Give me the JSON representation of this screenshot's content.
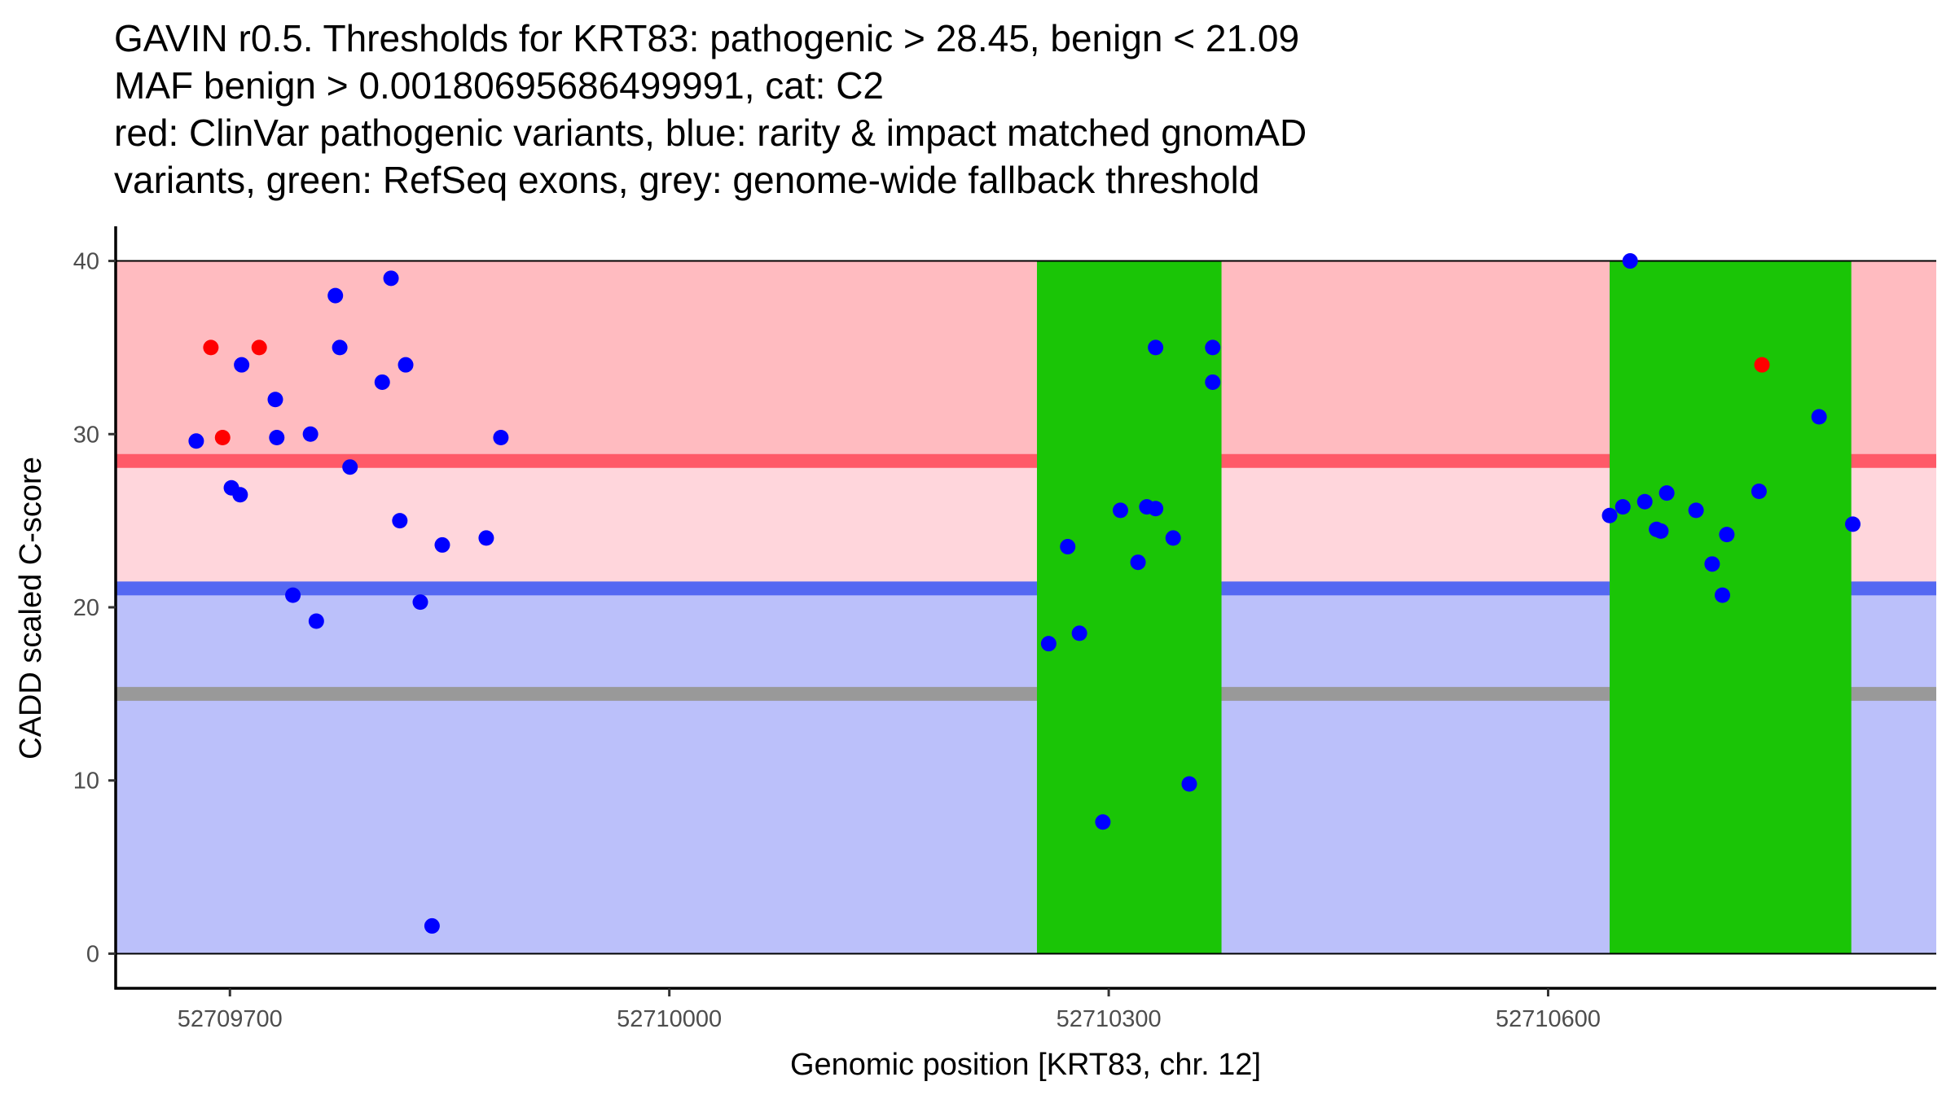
{
  "chart_data": {
    "type": "scatter",
    "title_lines": [
      "GAVIN r0.5. Thresholds for KRT83: pathogenic > 28.45, benign < 21.09",
      "MAF benign > 0.00180695686499991, cat: C2",
      "red: ClinVar pathogenic variants, blue: rarity & impact matched gnomAD",
      "variants, green: RefSeq exons, grey: genome-wide fallback threshold"
    ],
    "xlabel": "Genomic position [KRT83, chr. 12]",
    "ylabel": "CADD scaled C-score",
    "xlim": [
      52709622,
      52710865
    ],
    "ylim": [
      -2,
      42
    ],
    "x_ticks": [
      52709700,
      52710000,
      52710300,
      52710600
    ],
    "x_tick_labels": [
      "52709700",
      "52710000",
      "52710300",
      "52710600"
    ],
    "y_ticks": [
      0,
      10,
      20,
      30,
      40
    ],
    "y_tick_labels": [
      "0",
      "10",
      "20",
      "30",
      "40"
    ],
    "grid": false,
    "regions": {
      "pathogenic_zone": {
        "from": 28.45,
        "to": 40,
        "color": "#ffbbc0"
      },
      "uncertain_zone": {
        "from": 21.09,
        "to": 28.45,
        "color": "#ffd6dc"
      },
      "benign_zone": {
        "from": 0,
        "to": 21.09,
        "color": "#bbc0fa"
      }
    },
    "thresholds": [
      {
        "name": "pathogenic",
        "value": 28.45,
        "color": "#ff5a68"
      },
      {
        "name": "benign",
        "value": 21.09,
        "color": "#5468f2"
      },
      {
        "name": "genome-wide fallback",
        "value": 15.0,
        "color": "#999999"
      }
    ],
    "exons": [
      {
        "start": 52710251,
        "end": 52710377,
        "color": "#1ac506"
      },
      {
        "start": 52710642,
        "end": 52710807,
        "color": "#1ac506"
      }
    ],
    "series": [
      {
        "name": "ClinVar pathogenic variants",
        "color": "#ff0000",
        "points": [
          [
            52709687,
            35.0
          ],
          [
            52709695,
            29.8
          ],
          [
            52709720,
            35.0
          ],
          [
            52710746,
            34.0
          ]
        ]
      },
      {
        "name": "rarity & impact matched gnomAD variants",
        "color": "#0000ff",
        "points": [
          [
            52709677,
            29.6
          ],
          [
            52709701,
            26.9
          ],
          [
            52709707,
            26.5
          ],
          [
            52709708,
            34.0
          ],
          [
            52709731,
            32.0
          ],
          [
            52709732,
            29.8
          ],
          [
            52709743,
            20.7
          ],
          [
            52709755,
            30.0
          ],
          [
            52709759,
            19.2
          ],
          [
            52709772,
            38.0
          ],
          [
            52709775,
            35.0
          ],
          [
            52709782,
            28.1
          ],
          [
            52709804,
            33.0
          ],
          [
            52709810,
            39.0
          ],
          [
            52709816,
            25.0
          ],
          [
            52709820,
            34.0
          ],
          [
            52709830,
            20.3
          ],
          [
            52709838,
            1.6
          ],
          [
            52709845,
            23.6
          ],
          [
            52709875,
            24.0
          ],
          [
            52709885,
            29.8
          ],
          [
            52710259,
            17.9
          ],
          [
            52710272,
            23.5
          ],
          [
            52710280,
            18.5
          ],
          [
            52710296,
            7.6
          ],
          [
            52710308,
            25.6
          ],
          [
            52710320,
            22.6
          ],
          [
            52710326,
            25.8
          ],
          [
            52710332,
            25.7
          ],
          [
            52710332,
            35.0
          ],
          [
            52710344,
            24.0
          ],
          [
            52710355,
            9.8
          ],
          [
            52710371,
            35.0
          ],
          [
            52710371,
            33.0
          ],
          [
            52710642,
            25.3
          ],
          [
            52710651,
            25.8
          ],
          [
            52710656,
            40.0
          ],
          [
            52710666,
            26.1
          ],
          [
            52710674,
            24.5
          ],
          [
            52710677,
            24.4
          ],
          [
            52710681,
            26.6
          ],
          [
            52710701,
            25.6
          ],
          [
            52710712,
            22.5
          ],
          [
            52710719,
            20.7
          ],
          [
            52710722,
            24.2
          ],
          [
            52710744,
            26.7
          ],
          [
            52710785,
            31.0
          ],
          [
            52710808,
            24.8
          ]
        ]
      }
    ]
  }
}
